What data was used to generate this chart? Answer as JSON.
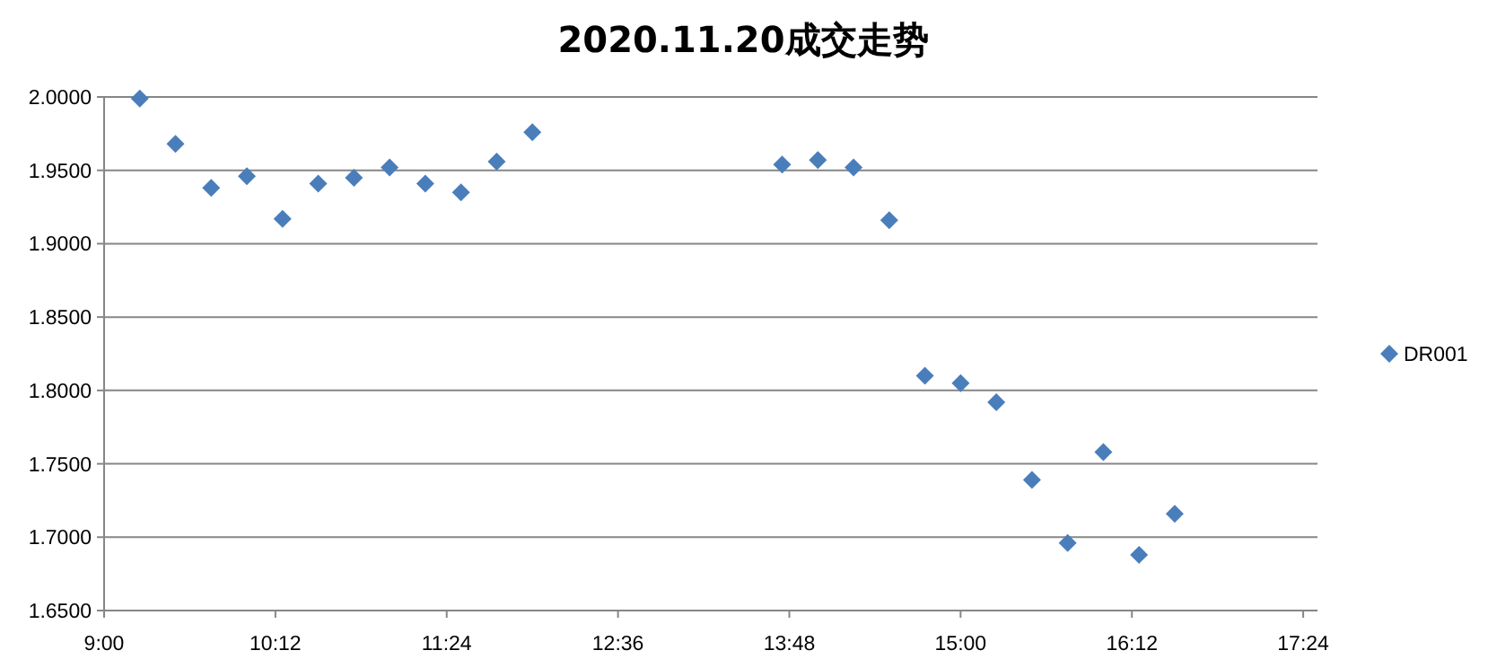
{
  "chart_data": {
    "type": "scatter",
    "title": "2020.11.20成交走势",
    "x": [
      9.25,
      9.5,
      9.75,
      10.0,
      10.25,
      10.5,
      10.75,
      11.0,
      11.25,
      11.5,
      11.75,
      12.0,
      13.75,
      14.0,
      14.25,
      14.5,
      14.75,
      15.0,
      15.25,
      15.5,
      15.75,
      16.0,
      16.25,
      16.5
    ],
    "series": [
      {
        "name": "DR001",
        "color": "#4a7ebb",
        "values": [
          1.999,
          1.968,
          1.938,
          1.946,
          1.917,
          1.941,
          1.945,
          1.952,
          1.941,
          1.935,
          1.956,
          1.976,
          1.954,
          1.957,
          1.952,
          1.916,
          1.81,
          1.805,
          1.792,
          1.739,
          1.696,
          1.758,
          1.688,
          1.716
        ]
      }
    ],
    "xlim": [
      9,
      17.5
    ],
    "xticks": [
      {
        "value": 9,
        "label": "9:00"
      },
      {
        "value": 10.2,
        "label": "10:12"
      },
      {
        "value": 11.4,
        "label": "11:24"
      },
      {
        "value": 12.6,
        "label": "12:36"
      },
      {
        "value": 13.8,
        "label": "13:48"
      },
      {
        "value": 15,
        "label": "15:00"
      },
      {
        "value": 16.2,
        "label": "16:12"
      },
      {
        "value": 17.4,
        "label": "17:24"
      }
    ],
    "ylim": [
      1.65,
      2.0
    ],
    "yticks": [
      {
        "value": 1.65,
        "label": "1.6500"
      },
      {
        "value": 1.7,
        "label": "1.7000"
      },
      {
        "value": 1.75,
        "label": "1.7500"
      },
      {
        "value": 1.8,
        "label": "1.8000"
      },
      {
        "value": 1.85,
        "label": "1.8500"
      },
      {
        "value": 1.9,
        "label": "1.9000"
      },
      {
        "value": 1.95,
        "label": "1.9500"
      },
      {
        "value": 2.0,
        "label": "2.0000"
      }
    ],
    "grid": "y",
    "legend": "right",
    "marker": "diamond"
  }
}
